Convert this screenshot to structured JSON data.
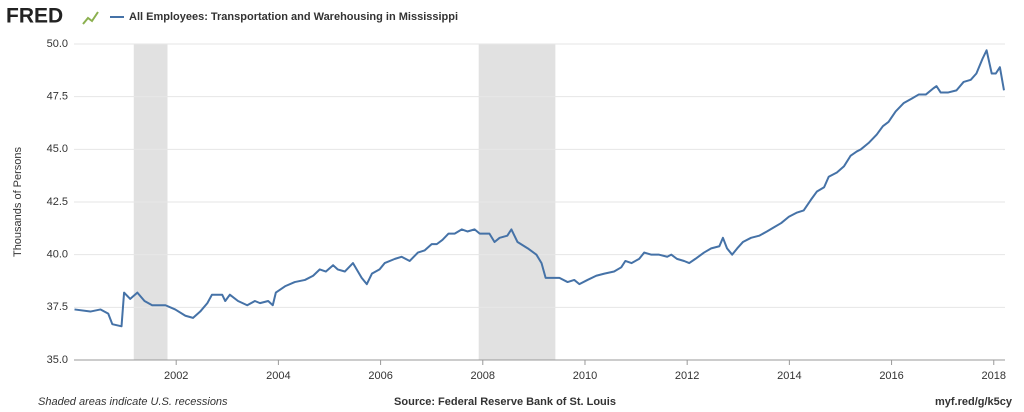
{
  "logo": "FRED",
  "footer": {
    "note": "Shaded areas indicate U.S. recessions",
    "source": "Source: Federal Reserve Bank of St. Louis",
    "link": "myf.red/g/k5cy"
  },
  "chart_data": {
    "type": "line",
    "ylabel": "Thousands of Persons",
    "xlim": [
      2000,
      2018.22
    ],
    "xticks": [
      2002,
      2004,
      2006,
      2008,
      2010,
      2012,
      2014,
      2016,
      2018
    ],
    "ylim": [
      35,
      50
    ],
    "yticks": [
      {
        "value": 35,
        "label": "35.0"
      },
      {
        "value": 37.5,
        "label": "37.5"
      },
      {
        "value": 40,
        "label": "40.0"
      },
      {
        "value": 42.5,
        "label": "42.5"
      },
      {
        "value": 45,
        "label": "45.0"
      },
      {
        "value": 47.5,
        "label": "47.5"
      },
      {
        "value": 50,
        "label": "50.0"
      }
    ],
    "grid": true,
    "recessions": [
      [
        2001.17,
        2001.83
      ],
      [
        2007.92,
        2009.42
      ]
    ],
    "x": [
      2000.01,
      2000.32,
      2000.52,
      2000.67,
      2000.75,
      2000.93,
      2000.98,
      2001.1,
      2001.24,
      2001.38,
      2001.53,
      2001.79,
      2001.98,
      2002.18,
      2002.33,
      2002.47,
      2002.61,
      2002.7,
      2002.9,
      2002.96,
      2003.05,
      2003.21,
      2003.39,
      2003.54,
      2003.64,
      2003.8,
      2003.89,
      2003.95,
      2004.13,
      2004.32,
      2004.52,
      2004.68,
      2004.81,
      2004.93,
      2005.07,
      2005.16,
      2005.3,
      2005.46,
      2005.63,
      2005.73,
      2005.83,
      2005.98,
      2006.08,
      2006.28,
      2006.41,
      2006.57,
      2006.73,
      2006.86,
      2007.0,
      2007.1,
      2007.21,
      2007.33,
      2007.45,
      2007.59,
      2007.7,
      2007.84,
      2007.94,
      2008.13,
      2008.23,
      2008.33,
      2008.48,
      2008.56,
      2008.68,
      2008.88,
      2009.05,
      2009.15,
      2009.23,
      2009.36,
      2009.5,
      2009.66,
      2009.79,
      2009.89,
      2010.05,
      2010.22,
      2010.38,
      2010.57,
      2010.71,
      2010.79,
      2010.91,
      2011.06,
      2011.16,
      2011.3,
      2011.45,
      2011.61,
      2011.69,
      2011.8,
      2011.94,
      2012.04,
      2012.16,
      2012.33,
      2012.47,
      2012.63,
      2012.7,
      2012.78,
      2012.88,
      2012.98,
      2013.09,
      2013.25,
      2013.41,
      2013.56,
      2013.7,
      2013.84,
      2013.99,
      2014.15,
      2014.28,
      2014.42,
      2014.54,
      2014.68,
      2014.77,
      2014.93,
      2015.07,
      2015.2,
      2015.32,
      2015.4,
      2015.55,
      2015.71,
      2015.83,
      2015.94,
      2016.08,
      2016.24,
      2016.39,
      2016.53,
      2016.67,
      2016.82,
      2016.88,
      2016.96,
      2017.11,
      2017.27,
      2017.41,
      2017.55,
      2017.66,
      2017.78,
      2017.86,
      2017.96,
      2018.04,
      2018.12,
      2018.2
    ],
    "series": [
      {
        "name": "All Employees: Transportation and Warehousing in Mississippi",
        "color": "#4572a7",
        "values": [
          37.4,
          37.3,
          37.4,
          37.2,
          36.7,
          36.6,
          38.2,
          37.9,
          38.2,
          37.8,
          37.6,
          37.6,
          37.4,
          37.1,
          37.0,
          37.3,
          37.7,
          38.1,
          38.1,
          37.8,
          38.1,
          37.8,
          37.6,
          37.8,
          37.7,
          37.8,
          37.6,
          38.2,
          38.5,
          38.7,
          38.8,
          39.0,
          39.3,
          39.2,
          39.5,
          39.3,
          39.2,
          39.6,
          38.9,
          38.6,
          39.1,
          39.3,
          39.6,
          39.8,
          39.9,
          39.7,
          40.1,
          40.2,
          40.5,
          40.5,
          40.7,
          41.0,
          41.0,
          41.2,
          41.1,
          41.2,
          41.0,
          41.0,
          40.6,
          40.8,
          40.9,
          41.2,
          40.6,
          40.3,
          40.0,
          39.6,
          38.9,
          38.9,
          38.9,
          38.7,
          38.8,
          38.6,
          38.8,
          39.0,
          39.1,
          39.2,
          39.4,
          39.7,
          39.6,
          39.8,
          40.1,
          40.0,
          40.0,
          39.9,
          40.0,
          39.8,
          39.7,
          39.6,
          39.8,
          40.1,
          40.3,
          40.4,
          40.8,
          40.3,
          40.0,
          40.3,
          40.6,
          40.8,
          40.9,
          41.1,
          41.3,
          41.5,
          41.8,
          42.0,
          42.1,
          42.6,
          43.0,
          43.2,
          43.7,
          43.9,
          44.2,
          44.7,
          44.9,
          45.0,
          45.3,
          45.7,
          46.1,
          46.3,
          46.8,
          47.2,
          47.4,
          47.6,
          47.6,
          47.9,
          48.0,
          47.7,
          47.7,
          47.8,
          48.2,
          48.3,
          48.6,
          49.3,
          49.7,
          48.6,
          48.6,
          48.9,
          47.8
        ]
      }
    ]
  }
}
